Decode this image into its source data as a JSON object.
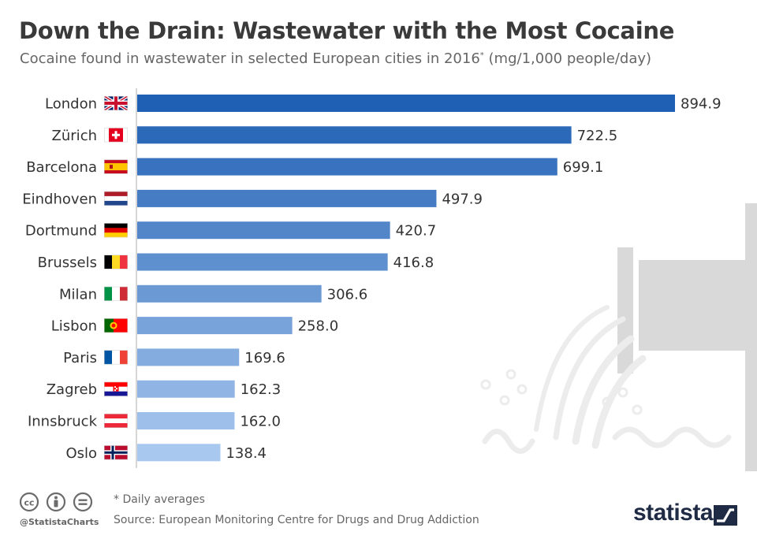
{
  "header": {
    "title": "Down the Drain: Wastewater with the Most Cocaine",
    "subtitle": "Cocaine found in wastewater in selected European cities in 2016",
    "subtitle_mark": "*",
    "subtitle_unit": " (mg/1,000 people/day)"
  },
  "footer": {
    "footnote": "* Daily averages",
    "source": "Source: European Monitoring Centre for Drugs and Drug Addiction",
    "handle": "@StatistaCharts",
    "brand": "statista"
  },
  "colors": {
    "bar_dark": "#2060b4",
    "bar_light": "#a9c8ef",
    "decor": "#d9d9d9",
    "axis": "#c8c8c8",
    "text": "#333333"
  },
  "chart_data": {
    "type": "bar",
    "orientation": "horizontal",
    "categories": [
      "London",
      "Zürich",
      "Barcelona",
      "Eindhoven",
      "Dortmund",
      "Brussels",
      "Milan",
      "Lisbon",
      "Paris",
      "Zagreb",
      "Innsbruck",
      "Oslo"
    ],
    "values": [
      894.9,
      722.5,
      699.1,
      497.9,
      420.7,
      416.8,
      306.6,
      258.0,
      169.6,
      162.3,
      162.0,
      138.4
    ],
    "value_labels": [
      "894.9",
      "722.5",
      "699.1",
      "497.9",
      "420.7",
      "416.8",
      "306.6",
      "258.0",
      "169.6",
      "162.3",
      "162.0",
      "138.4"
    ],
    "flags": [
      "uk-flag-icon",
      "switzerland-flag-icon",
      "spain-flag-icon",
      "netherlands-flag-icon",
      "germany-flag-icon",
      "belgium-flag-icon",
      "italy-flag-icon",
      "portugal-flag-icon",
      "france-flag-icon",
      "croatia-flag-icon",
      "austria-flag-icon",
      "norway-flag-icon"
    ],
    "xlim": [
      0,
      900
    ],
    "grid": false,
    "legend": "none"
  }
}
